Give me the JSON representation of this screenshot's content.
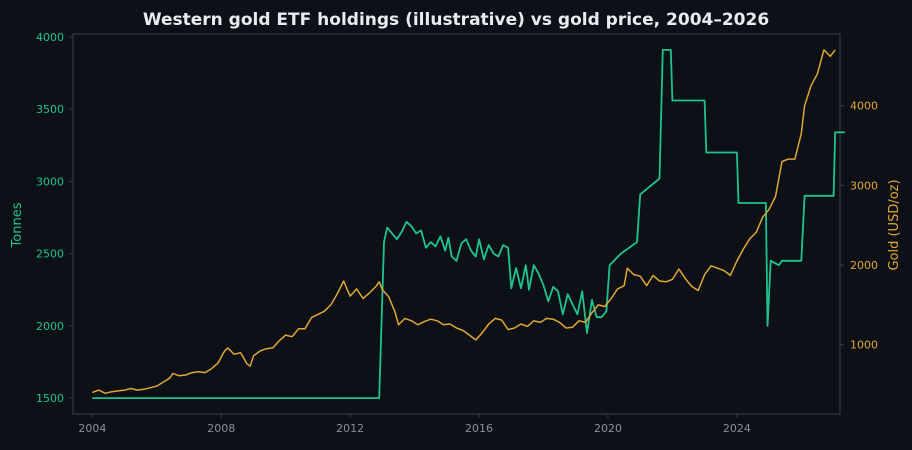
{
  "chart_data": {
    "type": "line",
    "title": "Western gold ETF holdings (illustrative) vs gold price, 2004–2026",
    "xlabel": "",
    "ylabel_left": "Tonnes",
    "ylabel_right": "Gold (USD/oz)",
    "xlim": [
      2003.4,
      2027.2
    ],
    "ylim_left": [
      1390,
      4020
    ],
    "ylim_right": [
      130,
      4900
    ],
    "x_ticks": [
      2004,
      2008,
      2012,
      2016,
      2020,
      2024
    ],
    "y_ticks_left": [
      1500,
      2000,
      2500,
      3000,
      3500,
      4000
    ],
    "y_ticks_right": [
      1000,
      2000,
      3000,
      4000
    ],
    "grid": false,
    "colors": {
      "background": "#0d1017",
      "spine": "#3a3f48",
      "title": "#e8ebf0",
      "x_tick": "#8a8f98",
      "holdings": "#1fc48c",
      "gold": "#e0a733"
    },
    "series": [
      {
        "axis": "left",
        "points": [
          [
            2004.0,
            1500
          ],
          [
            2012.9,
            1500
          ],
          [
            2013.05,
            2580
          ],
          [
            2013.15,
            2680
          ],
          [
            2013.3,
            2640
          ],
          [
            2013.45,
            2600
          ],
          [
            2013.6,
            2650
          ],
          [
            2013.75,
            2720
          ],
          [
            2013.9,
            2690
          ],
          [
            2014.05,
            2640
          ],
          [
            2014.2,
            2660
          ],
          [
            2014.35,
            2540
          ],
          [
            2014.5,
            2580
          ],
          [
            2014.65,
            2550
          ],
          [
            2014.8,
            2620
          ],
          [
            2014.95,
            2520
          ],
          [
            2015.05,
            2610
          ],
          [
            2015.15,
            2480
          ],
          [
            2015.3,
            2450
          ],
          [
            2015.45,
            2570
          ],
          [
            2015.6,
            2600
          ],
          [
            2015.75,
            2520
          ],
          [
            2015.9,
            2480
          ],
          [
            2016.0,
            2600
          ],
          [
            2016.15,
            2460
          ],
          [
            2016.3,
            2560
          ],
          [
            2016.45,
            2500
          ],
          [
            2016.6,
            2480
          ],
          [
            2016.75,
            2560
          ],
          [
            2016.9,
            2540
          ],
          [
            2017.0,
            2260
          ],
          [
            2017.15,
            2400
          ],
          [
            2017.3,
            2260
          ],
          [
            2017.45,
            2420
          ],
          [
            2017.55,
            2250
          ],
          [
            2017.7,
            2420
          ],
          [
            2017.85,
            2360
          ],
          [
            2018.0,
            2280
          ],
          [
            2018.15,
            2170
          ],
          [
            2018.3,
            2270
          ],
          [
            2018.45,
            2240
          ],
          [
            2018.6,
            2080
          ],
          [
            2018.75,
            2220
          ],
          [
            2018.9,
            2150
          ],
          [
            2019.05,
            2080
          ],
          [
            2019.2,
            2240
          ],
          [
            2019.35,
            1950
          ],
          [
            2019.5,
            2180
          ],
          [
            2019.65,
            2060
          ],
          [
            2019.8,
            2060
          ],
          [
            2019.95,
            2100
          ],
          [
            2020.05,
            2420
          ],
          [
            2020.4,
            2500
          ],
          [
            2020.9,
            2580
          ],
          [
            2021.0,
            2910
          ],
          [
            2021.6,
            3020
          ],
          [
            2021.7,
            3910
          ],
          [
            2021.95,
            3910
          ],
          [
            2022.0,
            3560
          ],
          [
            2023.0,
            3560
          ],
          [
            2023.05,
            3200
          ],
          [
            2024.0,
            3200
          ],
          [
            2024.05,
            2850
          ],
          [
            2024.9,
            2850
          ],
          [
            2024.95,
            2000
          ],
          [
            2025.05,
            2450
          ],
          [
            2025.3,
            2420
          ],
          [
            2025.4,
            2450
          ],
          [
            2026.0,
            2450
          ],
          [
            2026.1,
            2900
          ],
          [
            2027.0,
            2900
          ],
          [
            2027.05,
            3340
          ],
          [
            2027.35,
            3340
          ]
        ]
      },
      {
        "axis": "right",
        "points": [
          [
            2004.0,
            400
          ],
          [
            2004.2,
            430
          ],
          [
            2004.4,
            390
          ],
          [
            2004.6,
            410
          ],
          [
            2004.8,
            420
          ],
          [
            2005.0,
            430
          ],
          [
            2005.2,
            450
          ],
          [
            2005.4,
            430
          ],
          [
            2005.6,
            440
          ],
          [
            2005.8,
            460
          ],
          [
            2006.0,
            480
          ],
          [
            2006.2,
            530
          ],
          [
            2006.4,
            580
          ],
          [
            2006.5,
            640
          ],
          [
            2006.7,
            610
          ],
          [
            2006.9,
            620
          ],
          [
            2007.1,
            650
          ],
          [
            2007.3,
            660
          ],
          [
            2007.5,
            650
          ],
          [
            2007.7,
            700
          ],
          [
            2007.9,
            770
          ],
          [
            2008.1,
            920
          ],
          [
            2008.2,
            960
          ],
          [
            2008.4,
            880
          ],
          [
            2008.6,
            900
          ],
          [
            2008.8,
            760
          ],
          [
            2008.9,
            730
          ],
          [
            2009.0,
            860
          ],
          [
            2009.2,
            920
          ],
          [
            2009.4,
            950
          ],
          [
            2009.6,
            960
          ],
          [
            2009.8,
            1050
          ],
          [
            2010.0,
            1120
          ],
          [
            2010.2,
            1100
          ],
          [
            2010.4,
            1200
          ],
          [
            2010.6,
            1200
          ],
          [
            2010.8,
            1340
          ],
          [
            2011.0,
            1380
          ],
          [
            2011.2,
            1420
          ],
          [
            2011.4,
            1500
          ],
          [
            2011.6,
            1640
          ],
          [
            2011.8,
            1800
          ],
          [
            2011.9,
            1700
          ],
          [
            2012.0,
            1610
          ],
          [
            2012.2,
            1700
          ],
          [
            2012.4,
            1580
          ],
          [
            2012.6,
            1650
          ],
          [
            2012.8,
            1730
          ],
          [
            2012.9,
            1790
          ],
          [
            2013.0,
            1690
          ],
          [
            2013.2,
            1600
          ],
          [
            2013.4,
            1400
          ],
          [
            2013.5,
            1250
          ],
          [
            2013.7,
            1330
          ],
          [
            2013.9,
            1300
          ],
          [
            2014.1,
            1250
          ],
          [
            2014.3,
            1290
          ],
          [
            2014.5,
            1320
          ],
          [
            2014.7,
            1300
          ],
          [
            2014.9,
            1250
          ],
          [
            2015.1,
            1260
          ],
          [
            2015.3,
            1210
          ],
          [
            2015.5,
            1180
          ],
          [
            2015.7,
            1120
          ],
          [
            2015.9,
            1060
          ],
          [
            2016.1,
            1150
          ],
          [
            2016.3,
            1260
          ],
          [
            2016.5,
            1330
          ],
          [
            2016.7,
            1310
          ],
          [
            2016.9,
            1190
          ],
          [
            2017.1,
            1210
          ],
          [
            2017.3,
            1260
          ],
          [
            2017.5,
            1230
          ],
          [
            2017.7,
            1300
          ],
          [
            2017.9,
            1280
          ],
          [
            2018.1,
            1330
          ],
          [
            2018.3,
            1320
          ],
          [
            2018.5,
            1280
          ],
          [
            2018.7,
            1210
          ],
          [
            2018.9,
            1220
          ],
          [
            2019.1,
            1300
          ],
          [
            2019.3,
            1280
          ],
          [
            2019.5,
            1400
          ],
          [
            2019.7,
            1500
          ],
          [
            2019.9,
            1480
          ],
          [
            2020.1,
            1580
          ],
          [
            2020.3,
            1700
          ],
          [
            2020.5,
            1740
          ],
          [
            2020.6,
            1960
          ],
          [
            2020.8,
            1880
          ],
          [
            2021.0,
            1860
          ],
          [
            2021.2,
            1740
          ],
          [
            2021.4,
            1870
          ],
          [
            2021.6,
            1800
          ],
          [
            2021.8,
            1790
          ],
          [
            2022.0,
            1820
          ],
          [
            2022.2,
            1950
          ],
          [
            2022.4,
            1830
          ],
          [
            2022.6,
            1730
          ],
          [
            2022.8,
            1680
          ],
          [
            2023.0,
            1880
          ],
          [
            2023.2,
            1990
          ],
          [
            2023.4,
            1960
          ],
          [
            2023.6,
            1930
          ],
          [
            2023.8,
            1870
          ],
          [
            2024.0,
            2050
          ],
          [
            2024.2,
            2200
          ],
          [
            2024.4,
            2330
          ],
          [
            2024.6,
            2410
          ],
          [
            2024.8,
            2600
          ],
          [
            2025.0,
            2700
          ],
          [
            2025.2,
            2860
          ],
          [
            2025.4,
            3300
          ],
          [
            2025.6,
            3330
          ],
          [
            2025.8,
            3330
          ],
          [
            2026.0,
            3650
          ],
          [
            2026.1,
            4000
          ],
          [
            2026.3,
            4250
          ],
          [
            2026.5,
            4400
          ],
          [
            2026.7,
            4700
          ],
          [
            2026.9,
            4620
          ],
          [
            2027.05,
            4700
          ]
        ]
      }
    ]
  }
}
